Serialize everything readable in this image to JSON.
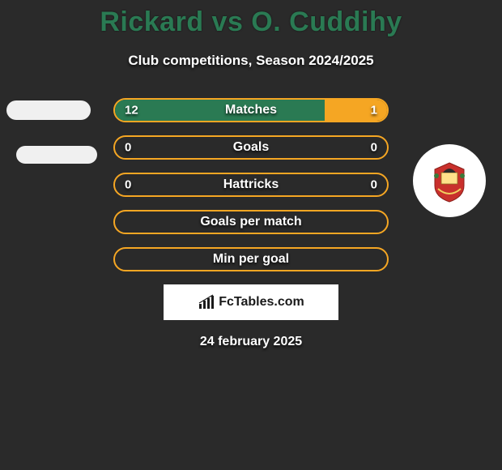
{
  "title": "Rickard vs O. Cuddihy",
  "subtitle": "Club competitions, Season 2024/2025",
  "date": "24 february 2025",
  "footer_label": "FcTables.com",
  "colors": {
    "background": "#2a2a2a",
    "title": "#2a7a53",
    "left_fill": "#2a7a53",
    "right_fill": "#f5a623",
    "border": "#f5a623",
    "text": "#ffffff"
  },
  "bars": [
    {
      "label": "Matches",
      "left_val": "12",
      "right_val": "1",
      "left_pct": 77,
      "right_pct": 23,
      "show_vals": true
    },
    {
      "label": "Goals",
      "left_val": "0",
      "right_val": "0",
      "left_pct": 0,
      "right_pct": 0,
      "show_vals": true
    },
    {
      "label": "Hattricks",
      "left_val": "0",
      "right_val": "0",
      "left_pct": 0,
      "right_pct": 0,
      "show_vals": true
    },
    {
      "label": "Goals per match",
      "left_val": "",
      "right_val": "",
      "left_pct": 0,
      "right_pct": 0,
      "show_vals": false
    },
    {
      "label": "Min per goal",
      "left_val": "",
      "right_val": "",
      "left_pct": 0,
      "right_pct": 0,
      "show_vals": false
    }
  ]
}
